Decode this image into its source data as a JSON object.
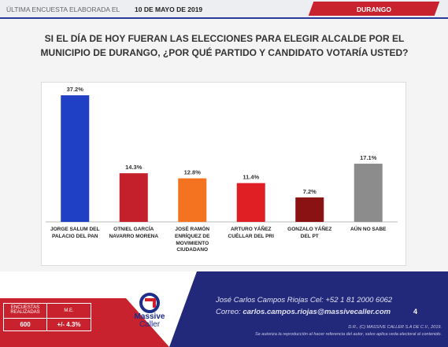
{
  "header": {
    "prefix": "ÚLTIMA ENCUESTA ELABORADA EL",
    "date": "10 DE MAYO DE 2019",
    "region": "DURANGO"
  },
  "chart_data": {
    "type": "bar",
    "title": "SI EL DÍA DE HOY FUERAN LAS ELECCIONES PARA ELEGIR ALCALDE POR EL MUNICIPIO DE DURANGO, ¿POR QUÉ PARTIDO Y CANDIDATO VOTARÍA USTED?",
    "categories": [
      "JORGE SALUM DEL PALACIO DEL PAN",
      "OTNIEL GARCÍA NAVARRO MORENA",
      "JOSÉ RAMÓN ENRÍQUEZ DE MOVIMIENTO CIUDADANO",
      "ARTURO YÁÑEZ CUÉLLAR DEL PRI",
      "GONZALO YÁÑEZ DEL PT",
      "AÚN NO SABE"
    ],
    "values": [
      37.2,
      14.3,
      12.8,
      11.4,
      7.2,
      17.1
    ],
    "value_labels": [
      "37.2%",
      "14.3%",
      "12.8%",
      "11.4%",
      "7.2%",
      "17.1%"
    ],
    "colors": [
      "#1f3fc4",
      "#c4202b",
      "#f47321",
      "#e01f25",
      "#8a1212",
      "#8c8c8c"
    ],
    "ylim": [
      0,
      40
    ]
  },
  "footer": {
    "table": {
      "headers": [
        "ENCUESTAS REALIZADAS",
        "M.E."
      ],
      "row": [
        "600",
        "+/- 4.3%"
      ]
    },
    "logo": [
      "Massive",
      "Caller"
    ],
    "contact": "José Carlos Campos Riojas Cel: +52 1 81 2000 6062",
    "email_label": "Correo:",
    "email": "carlos.campos.riojas@massivecaller.com",
    "page": "4",
    "copyright": "D.R., (C) MASSIVE CALLER S.A DE C.V., 2019.",
    "notice": "Se autoriza la reproducción al hacer referencia del autor, salvo aplica veda electoral al contenido."
  }
}
